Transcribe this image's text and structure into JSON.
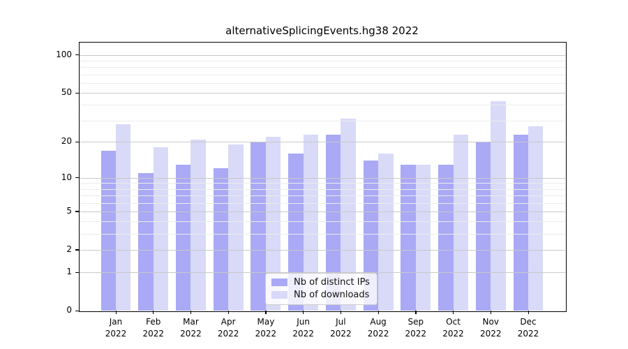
{
  "window": {
    "title": "alternativeSplicingEvents.hg38 2022"
  },
  "chart_data": {
    "type": "bar",
    "title": "alternativeSplicingEvents.hg38 2022",
    "categories": [
      "Jan",
      "Feb",
      "Mar",
      "Apr",
      "May",
      "Jun",
      "Jul",
      "Aug",
      "Sep",
      "Oct",
      "Nov",
      "Dec"
    ],
    "category_year": "2022",
    "series": [
      {
        "name": "Nb of distinct IPs",
        "color": "#a9a9f5",
        "values": [
          17,
          11,
          13,
          12,
          20,
          16,
          23,
          14,
          13,
          13,
          20,
          23
        ]
      },
      {
        "name": "Nb of downloads",
        "color": "#d9d9f8",
        "values": [
          28,
          18,
          21,
          19,
          22,
          23,
          31,
          16,
          13,
          23,
          43,
          27
        ]
      }
    ],
    "y_scale": "log1p",
    "ylim": [
      0,
      127
    ],
    "y_major_ticks": [
      100,
      50,
      20,
      10,
      5,
      2,
      1,
      0
    ],
    "y_minor_gridlines": [
      3,
      4,
      6,
      7,
      8,
      9,
      30,
      40,
      60,
      70,
      80,
      90
    ],
    "xlabel": "",
    "ylabel": "",
    "grid": "horizontal majors and log minors, drawn on top of bars",
    "legend_position": "lower center"
  },
  "colors": {
    "background": "#ffffff",
    "bar_dark": "#a9a9f5",
    "bar_light": "#d9d9f8",
    "major_grid": "#c9c9c9",
    "minor_grid": "#ececec",
    "spine": "#000000",
    "legend_border": "#cccccc"
  }
}
